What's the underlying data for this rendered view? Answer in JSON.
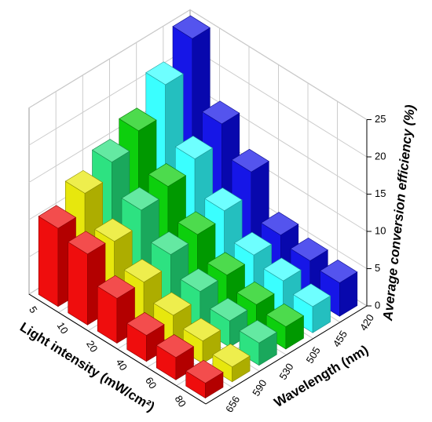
{
  "chart_data": {
    "type": "bar3d",
    "x_label": "Light intensity (mW/cm²)",
    "y_label": "Wavelength (nm)",
    "z_label": "Average conversion efficiency (%)",
    "x_categories": [
      5,
      10,
      20,
      40,
      60,
      80
    ],
    "series": [
      {
        "name": "420",
        "color": "#0a0ae6",
        "values": [
          25,
          16,
          12,
          6,
          5,
          4.5
        ]
      },
      {
        "name": "455",
        "color": "#30ffff",
        "values": [
          21,
          13.5,
          9,
          5.5,
          4.5,
          3.5
        ]
      },
      {
        "name": "505",
        "color": "#00cc00",
        "values": [
          17,
          12,
          8,
          5,
          3.5,
          3
        ]
      },
      {
        "name": "530",
        "color": "#22e07a",
        "values": [
          15,
          11,
          7.5,
          5,
          3.5,
          3
        ]
      },
      {
        "name": "590",
        "color": "#e6e600",
        "values": [
          13,
          9,
          6,
          4,
          3,
          2
        ]
      },
      {
        "name": "656",
        "color": "#ee0000",
        "values": [
          10.5,
          9.5,
          6,
          3.5,
          3,
          2
        ]
      }
    ],
    "zlim": [
      0,
      25
    ],
    "zticks": [
      0,
      5,
      10,
      15,
      20,
      25
    ],
    "grid": true
  }
}
